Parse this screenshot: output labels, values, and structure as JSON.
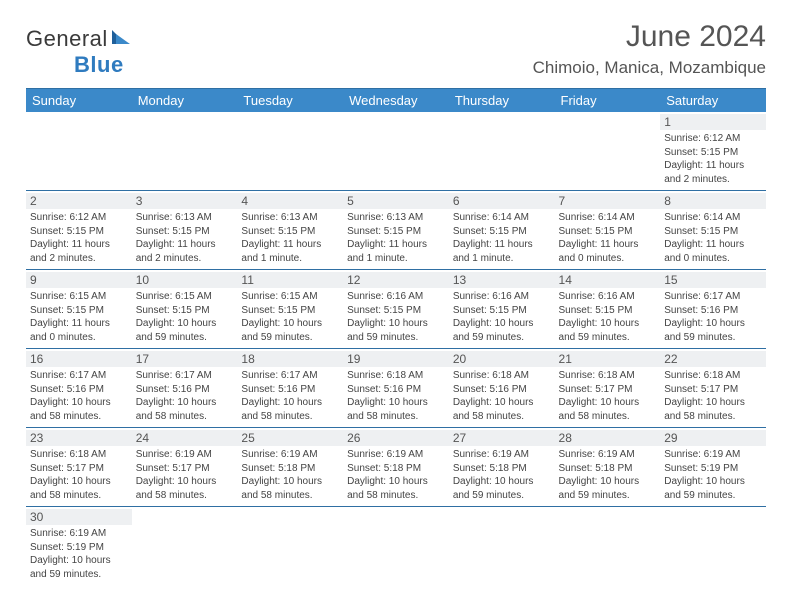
{
  "brand": {
    "part1": "General",
    "part2": "Blue"
  },
  "title": "June 2024",
  "location": "Chimoio, Manica, Mozambique",
  "colors": {
    "header_bg": "#3b89c9",
    "header_text": "#ffffff",
    "border": "#2f6fa3",
    "daynum_bg": "#eef0f2",
    "text": "#3a3a3a",
    "brand_blue": "#2f7bbf"
  },
  "typography": {
    "title_fontsize": 30,
    "location_fontsize": 17,
    "dayheader_fontsize": 13,
    "daynum_fontsize": 12,
    "info_fontsize": 10
  },
  "day_headers": [
    "Sunday",
    "Monday",
    "Tuesday",
    "Wednesday",
    "Thursday",
    "Friday",
    "Saturday"
  ],
  "weeks": [
    [
      null,
      null,
      null,
      null,
      null,
      null,
      {
        "n": "1",
        "sr": "6:12 AM",
        "ss": "5:15 PM",
        "dl": "11 hours and 2 minutes."
      }
    ],
    [
      {
        "n": "2",
        "sr": "6:12 AM",
        "ss": "5:15 PM",
        "dl": "11 hours and 2 minutes."
      },
      {
        "n": "3",
        "sr": "6:13 AM",
        "ss": "5:15 PM",
        "dl": "11 hours and 2 minutes."
      },
      {
        "n": "4",
        "sr": "6:13 AM",
        "ss": "5:15 PM",
        "dl": "11 hours and 1 minute."
      },
      {
        "n": "5",
        "sr": "6:13 AM",
        "ss": "5:15 PM",
        "dl": "11 hours and 1 minute."
      },
      {
        "n": "6",
        "sr": "6:14 AM",
        "ss": "5:15 PM",
        "dl": "11 hours and 1 minute."
      },
      {
        "n": "7",
        "sr": "6:14 AM",
        "ss": "5:15 PM",
        "dl": "11 hours and 0 minutes."
      },
      {
        "n": "8",
        "sr": "6:14 AM",
        "ss": "5:15 PM",
        "dl": "11 hours and 0 minutes."
      }
    ],
    [
      {
        "n": "9",
        "sr": "6:15 AM",
        "ss": "5:15 PM",
        "dl": "11 hours and 0 minutes."
      },
      {
        "n": "10",
        "sr": "6:15 AM",
        "ss": "5:15 PM",
        "dl": "10 hours and 59 minutes."
      },
      {
        "n": "11",
        "sr": "6:15 AM",
        "ss": "5:15 PM",
        "dl": "10 hours and 59 minutes."
      },
      {
        "n": "12",
        "sr": "6:16 AM",
        "ss": "5:15 PM",
        "dl": "10 hours and 59 minutes."
      },
      {
        "n": "13",
        "sr": "6:16 AM",
        "ss": "5:15 PM",
        "dl": "10 hours and 59 minutes."
      },
      {
        "n": "14",
        "sr": "6:16 AM",
        "ss": "5:15 PM",
        "dl": "10 hours and 59 minutes."
      },
      {
        "n": "15",
        "sr": "6:17 AM",
        "ss": "5:16 PM",
        "dl": "10 hours and 59 minutes."
      }
    ],
    [
      {
        "n": "16",
        "sr": "6:17 AM",
        "ss": "5:16 PM",
        "dl": "10 hours and 58 minutes."
      },
      {
        "n": "17",
        "sr": "6:17 AM",
        "ss": "5:16 PM",
        "dl": "10 hours and 58 minutes."
      },
      {
        "n": "18",
        "sr": "6:17 AM",
        "ss": "5:16 PM",
        "dl": "10 hours and 58 minutes."
      },
      {
        "n": "19",
        "sr": "6:18 AM",
        "ss": "5:16 PM",
        "dl": "10 hours and 58 minutes."
      },
      {
        "n": "20",
        "sr": "6:18 AM",
        "ss": "5:16 PM",
        "dl": "10 hours and 58 minutes."
      },
      {
        "n": "21",
        "sr": "6:18 AM",
        "ss": "5:17 PM",
        "dl": "10 hours and 58 minutes."
      },
      {
        "n": "22",
        "sr": "6:18 AM",
        "ss": "5:17 PM",
        "dl": "10 hours and 58 minutes."
      }
    ],
    [
      {
        "n": "23",
        "sr": "6:18 AM",
        "ss": "5:17 PM",
        "dl": "10 hours and 58 minutes."
      },
      {
        "n": "24",
        "sr": "6:19 AM",
        "ss": "5:17 PM",
        "dl": "10 hours and 58 minutes."
      },
      {
        "n": "25",
        "sr": "6:19 AM",
        "ss": "5:18 PM",
        "dl": "10 hours and 58 minutes."
      },
      {
        "n": "26",
        "sr": "6:19 AM",
        "ss": "5:18 PM",
        "dl": "10 hours and 58 minutes."
      },
      {
        "n": "27",
        "sr": "6:19 AM",
        "ss": "5:18 PM",
        "dl": "10 hours and 59 minutes."
      },
      {
        "n": "28",
        "sr": "6:19 AM",
        "ss": "5:18 PM",
        "dl": "10 hours and 59 minutes."
      },
      {
        "n": "29",
        "sr": "6:19 AM",
        "ss": "5:19 PM",
        "dl": "10 hours and 59 minutes."
      }
    ],
    [
      {
        "n": "30",
        "sr": "6:19 AM",
        "ss": "5:19 PM",
        "dl": "10 hours and 59 minutes."
      },
      null,
      null,
      null,
      null,
      null,
      null
    ]
  ],
  "labels": {
    "sunrise": "Sunrise: ",
    "sunset": "Sunset: ",
    "daylight": "Daylight: "
  }
}
